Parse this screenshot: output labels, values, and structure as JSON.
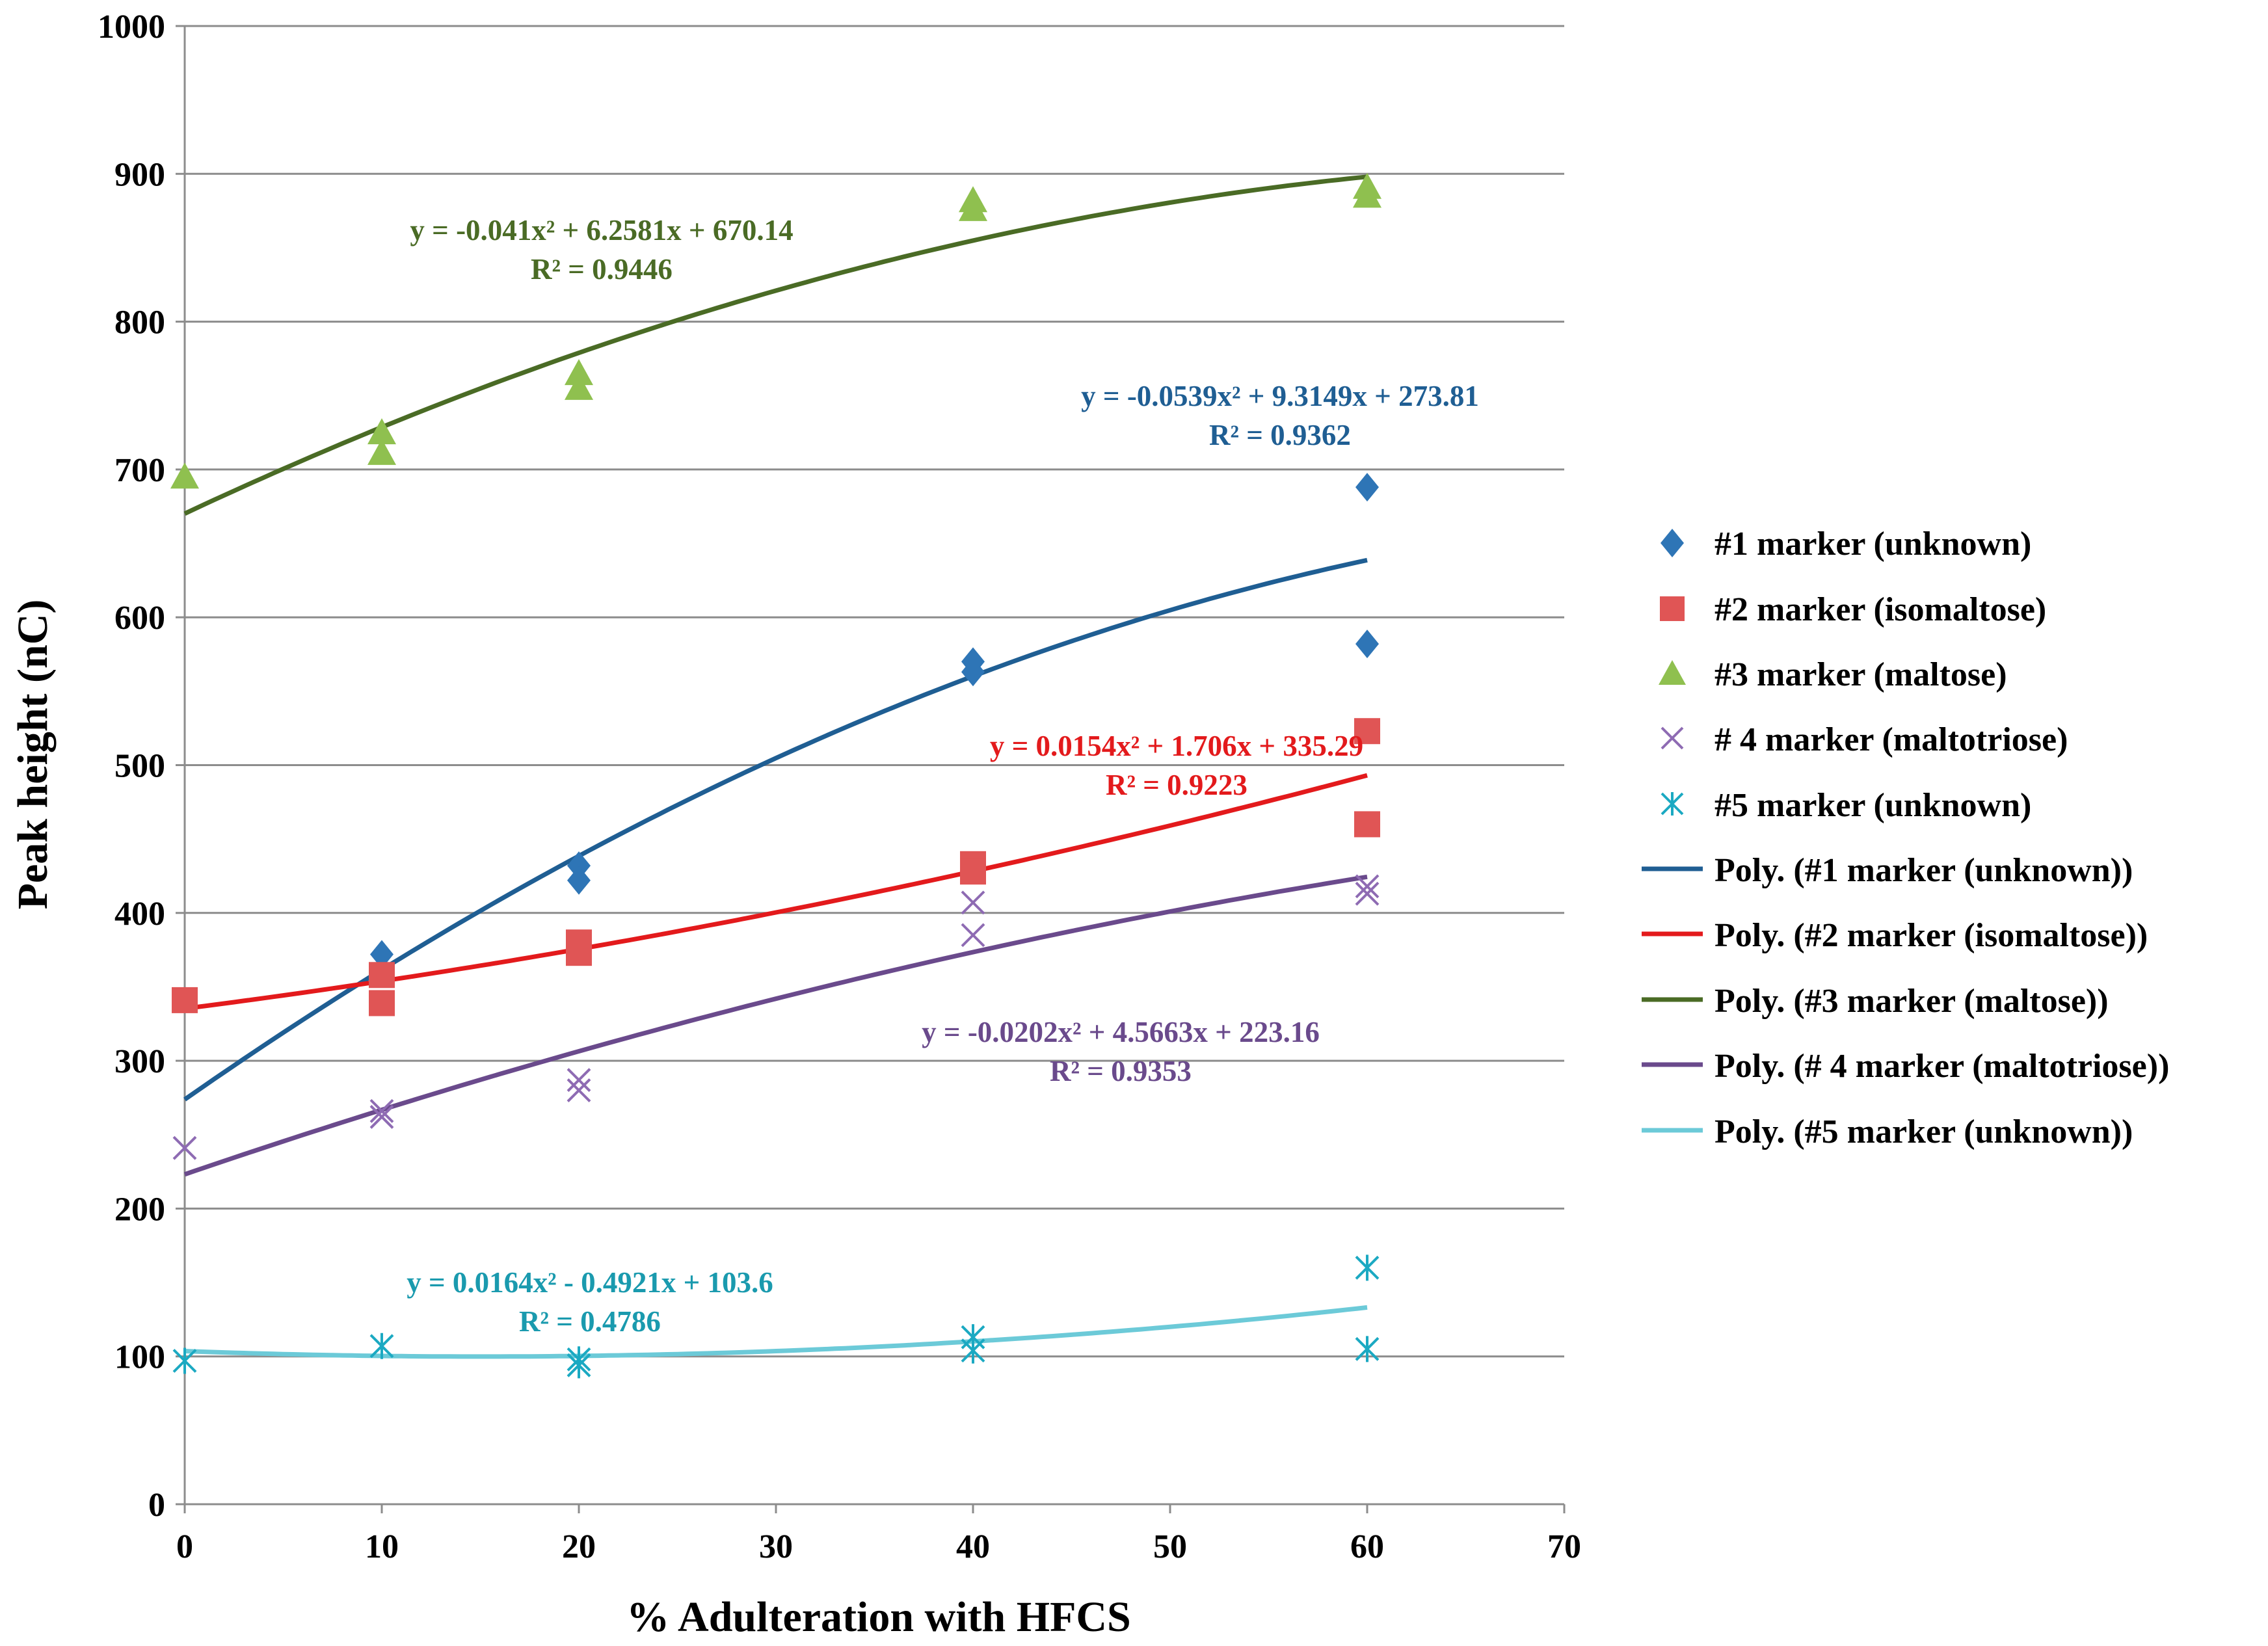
{
  "chart_data": {
    "type": "scatter",
    "title": "",
    "xlabel": "% Adulteration with HFCS",
    "ylabel": "Peak height (nC)",
    "xlim": [
      0,
      70
    ],
    "ylim": [
      0,
      1000
    ],
    "x_ticks": [
      0,
      10,
      20,
      30,
      40,
      50,
      60,
      70
    ],
    "y_ticks": [
      0,
      100,
      200,
      300,
      400,
      500,
      600,
      700,
      800,
      900,
      1000
    ],
    "x_tick_labels": [
      "0",
      "10",
      "20",
      "30",
      "40",
      "50",
      "60",
      "70"
    ],
    "y_tick_labels": [
      "0",
      "100",
      "200",
      "300",
      "400",
      "500",
      "600",
      "700",
      "800",
      "900",
      "1000"
    ],
    "grid": "horizontal",
    "legend_position": "right",
    "series": [
      {
        "name": "#1 marker (unknown)",
        "marker": "diamond",
        "color": "#2E75B6",
        "points": [
          [
            10,
            372
          ],
          [
            20,
            432
          ],
          [
            20,
            422
          ],
          [
            40,
            570
          ],
          [
            40,
            563
          ],
          [
            60,
            688
          ],
          [
            60,
            582
          ]
        ]
      },
      {
        "name": "#2 marker (isomaltose)",
        "marker": "square",
        "color": "#E05555",
        "points": [
          [
            0,
            341
          ],
          [
            10,
            358
          ],
          [
            10,
            339
          ],
          [
            20,
            380
          ],
          [
            20,
            373
          ],
          [
            40,
            433
          ],
          [
            40,
            428
          ],
          [
            60,
            523
          ],
          [
            60,
            460
          ]
        ]
      },
      {
        "name": "#3 marker (maltose)",
        "marker": "triangle",
        "color": "#8FC04F",
        "points": [
          [
            0,
            695
          ],
          [
            10,
            725
          ],
          [
            10,
            711
          ],
          [
            20,
            765
          ],
          [
            20,
            755
          ],
          [
            40,
            882
          ],
          [
            40,
            876
          ],
          [
            60,
            891
          ],
          [
            60,
            885
          ]
        ]
      },
      {
        "name": "# 4 marker (maltotriose)",
        "marker": "x",
        "color": "#8E6BB3",
        "points": [
          [
            0,
            241
          ],
          [
            10,
            266
          ],
          [
            10,
            262
          ],
          [
            20,
            287
          ],
          [
            20,
            280
          ],
          [
            40,
            407
          ],
          [
            40,
            385
          ],
          [
            60,
            418
          ],
          [
            60,
            413
          ]
        ]
      },
      {
        "name": "#5 marker (unknown)",
        "marker": "star",
        "color": "#1BA9C2",
        "points": [
          [
            0,
            97
          ],
          [
            10,
            107
          ],
          [
            20,
            98
          ],
          [
            20,
            94
          ],
          [
            40,
            113
          ],
          [
            40,
            104
          ],
          [
            60,
            160
          ],
          [
            60,
            105
          ]
        ]
      }
    ],
    "trendlines": [
      {
        "name": "Poly. (#1 marker (unknown))",
        "color": "#1F5E93",
        "coefficients": [
          -0.0539,
          9.3149,
          273.81
        ],
        "x_range": [
          0,
          60
        ],
        "equation": "y = -0.0539x² + 9.3149x + 273.81",
        "r2": "R² = 0.9362"
      },
      {
        "name": "Poly. (#2 marker (isomaltose))",
        "color": "#E31A1C",
        "coefficients": [
          0.0154,
          1.706,
          335.29
        ],
        "x_range": [
          0,
          60
        ],
        "equation": "y = 0.0154x² + 1.706x + 335.29",
        "r2": "R² = 0.9223"
      },
      {
        "name": "Poly. (#3 marker (maltose))",
        "color": "#4A6B25",
        "coefficients": [
          -0.041,
          6.2581,
          670.14
        ],
        "x_range": [
          0,
          60
        ],
        "equation": "y = -0.041x² + 6.2581x + 670.14",
        "r2": "R² = 0.9446"
      },
      {
        "name": "Poly. (# 4 marker (maltotriose))",
        "color": "#6A4A8C",
        "coefficients": [
          -0.0202,
          4.5663,
          223.16
        ],
        "x_range": [
          0,
          60
        ],
        "equation": "y = -0.0202x² + 4.5663x + 223.16",
        "r2": "R² = 0.9353"
      },
      {
        "name": "Poly. (#5 marker (unknown))",
        "color": "#6CCAD8",
        "coefficients": [
          0.0164,
          -0.4921,
          103.6
        ],
        "x_range": [
          0,
          60
        ],
        "equation": "y = 0.0164x² - 0.4921x + 103.6",
        "r2": "R² = 0.4786"
      }
    ]
  },
  "annotation_colors": {
    "s1": "#1F5E93",
    "s2": "#E31A1C",
    "s3": "#4A6B25",
    "s4": "#6A4A8C",
    "s5": "#1A9AAE"
  }
}
